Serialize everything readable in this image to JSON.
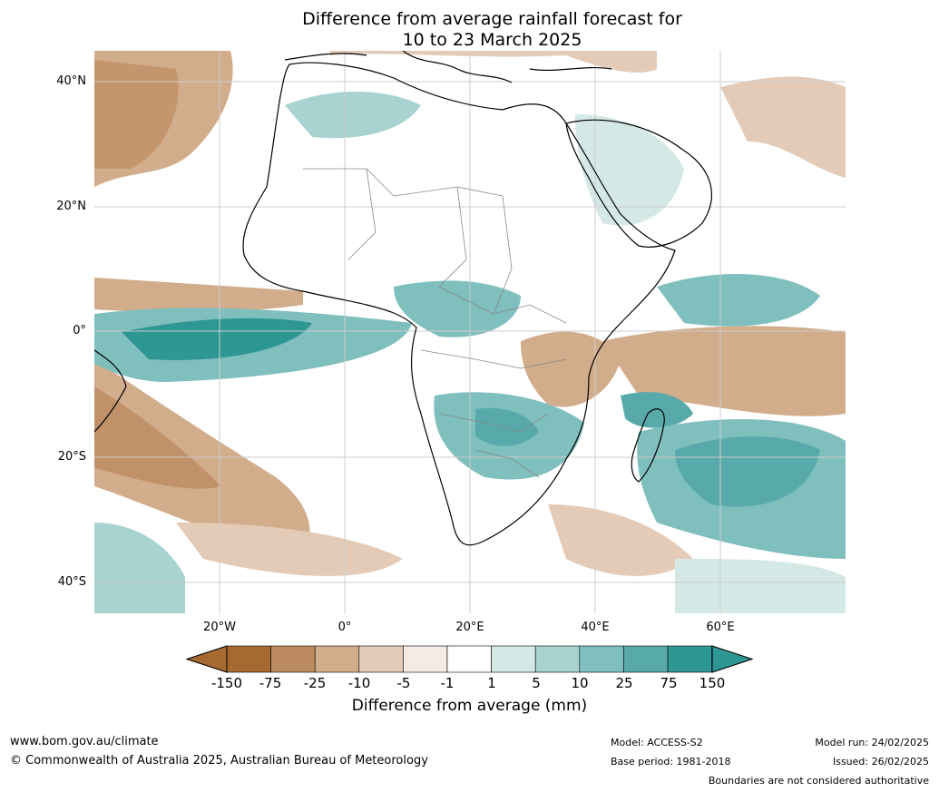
{
  "title_line1": "Difference from average rainfall forecast for",
  "title_line2": "10 to 23 March 2025",
  "lat_labels": [
    "40°N",
    "20°N",
    "0°",
    "20°S",
    "40°S"
  ],
  "lon_labels": [
    "20°W",
    "0°",
    "20°E",
    "40°E",
    "60°E"
  ],
  "colorbar": {
    "label": "Difference from average (mm)",
    "ticks": [
      "-150",
      "-75",
      "-25",
      "-10",
      "-5",
      "-1",
      "1",
      "5",
      "10",
      "25",
      "75",
      "150"
    ],
    "colors": [
      "#a66a30",
      "#bd8b60",
      "#d2ad8c",
      "#e4cbb7",
      "#f4ebe5",
      "#ffffff",
      "#d4e8e6",
      "#a8d3d1",
      "#7fbfbd",
      "#57aaa9",
      "#2e9693"
    ],
    "extend_low": "#a66a30",
    "extend_high": "#2e9693"
  },
  "footer": {
    "website": "www.bom.gov.au/climate",
    "copyright": "© Commonwealth of Australia 2025, Australian Bureau of Meteorology",
    "model": "Model: ACCESS-S2",
    "base_period": "Base period: 1981-2018",
    "model_run": "Model run: 24/02/2025",
    "issued": "Issued: 26/02/2025",
    "disclaimer": "Boundaries are not considered authoritative"
  }
}
